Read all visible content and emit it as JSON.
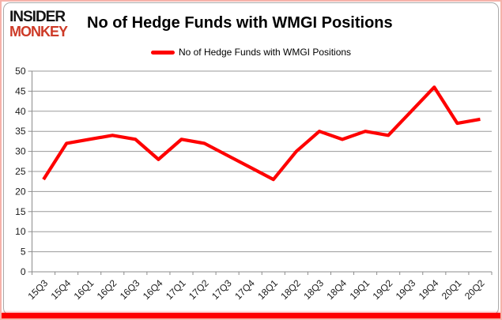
{
  "header": {
    "logo_line1": "INSIDER",
    "logo_line2": "MONKEY",
    "title": "No of Hedge Funds with WMGI Positions"
  },
  "legend": {
    "label": "No of Hedge Funds with WMGI Positions"
  },
  "colors": {
    "series": "#fe0000",
    "grid": "#9a9a9a",
    "axis": "#8c8c8c",
    "tick_text": "#1a1a1a",
    "logo_top": "#141414",
    "logo_bottom": "#cd3a27",
    "outer_border": "#f6b2aa",
    "bottom_bar": "#fe0000"
  },
  "chart_data": {
    "type": "line",
    "title": "No of Hedge Funds with WMGI Positions",
    "series_name": "No of Hedge Funds with WMGI Positions",
    "categories": [
      "15Q3",
      "15Q4",
      "16Q1",
      "16Q2",
      "16Q3",
      "16Q4",
      "17Q1",
      "17Q2",
      "17Q3",
      "17Q4",
      "18Q1",
      "18Q2",
      "18Q3",
      "18Q4",
      "19Q1",
      "19Q2",
      "19Q3",
      "19Q4",
      "20Q1",
      "20Q2"
    ],
    "values": [
      23,
      32,
      33,
      34,
      33,
      28,
      33,
      32,
      29,
      26,
      23,
      30,
      35,
      33,
      35,
      34,
      40,
      46,
      37,
      38
    ],
    "ylim": [
      0,
      50
    ],
    "ytick_step": 5,
    "yticks": [
      0,
      5,
      10,
      15,
      20,
      25,
      30,
      35,
      40,
      45,
      50
    ],
    "grid": true,
    "legend_position": "top",
    "xlabel": "",
    "ylabel": ""
  }
}
